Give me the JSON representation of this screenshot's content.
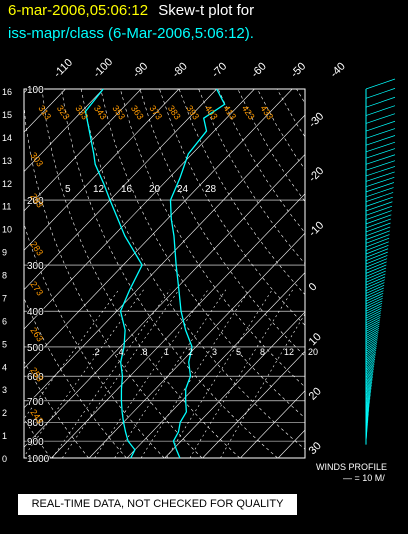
{
  "header": {
    "timestamp": "6-mar-2006,05:06:12",
    "title_suffix": "Skew-t plot for",
    "station_line": "iss-mapr/class (6-Mar-2006,5:06:12)."
  },
  "notice": "REAL-TIME DATA, NOT CHECKED FOR QUALITY",
  "winds": {
    "title": "WINDS PROFILE",
    "scale": "— = 10 M/"
  },
  "colors": {
    "background": "#000000",
    "timestamp": "#ffff00",
    "title": "#ffffff",
    "station": "#00ffff",
    "grid": "#ffffff",
    "mixing_ratio": "#ffffff",
    "dry_adiabat": "#ff9a00",
    "profile": "#00ffff",
    "wind_barbs": "#00ffff",
    "notice_bg": "#ffffff",
    "notice_text": "#000000"
  },
  "chart_data": {
    "type": "line",
    "title": "Skew-t plot for iss-mapr/class (6-Mar-2006,5:06:12).",
    "left_axis_km": [
      "0",
      "1",
      "2",
      "3",
      "4",
      "5",
      "6",
      "7",
      "8",
      "9",
      "10",
      "11",
      "12",
      "13",
      "14",
      "15",
      "16"
    ],
    "pressure_labels": [
      "100",
      "200",
      "300",
      "400",
      "500",
      "600",
      "700",
      "800",
      "900",
      "1000"
    ],
    "top_temperature_labels": [
      "-110",
      "-100",
      "-90",
      "-80",
      "-70",
      "-60",
      "-50",
      "-40"
    ],
    "right_temperature_labels": [
      "-30",
      "-20",
      "-10",
      "0",
      "10",
      "20",
      "30"
    ],
    "mixing_ratio_labels": [
      ".2",
      ".4",
      ".8",
      "1",
      "2",
      "3",
      "5",
      "8",
      "12",
      "20"
    ],
    "dry_adiabat_labels_top": [
      "313",
      "323",
      "333",
      "343",
      "353",
      "363",
      "373",
      "383",
      "393",
      "403",
      "413",
      "423",
      "433"
    ],
    "dry_adiabat_labels_left": [
      "303",
      "293",
      "283",
      "273",
      "263",
      "253",
      "243"
    ],
    "moist_adiabat_labels": [
      "5",
      "12",
      "16",
      "20",
      "24",
      "28"
    ],
    "series": [
      {
        "role": "temperature",
        "points": [
          [
            1000,
            14
          ],
          [
            950,
            11
          ],
          [
            900,
            8
          ],
          [
            850,
            7
          ],
          [
            800,
            5
          ],
          [
            750,
            4
          ],
          [
            700,
            1
          ],
          [
            650,
            -2
          ],
          [
            600,
            -4
          ],
          [
            550,
            -8
          ],
          [
            500,
            -11
          ],
          [
            450,
            -17
          ],
          [
            400,
            -23
          ],
          [
            350,
            -29
          ],
          [
            300,
            -36
          ],
          [
            250,
            -44
          ],
          [
            225,
            -49
          ],
          [
            200,
            -54
          ],
          [
            175,
            -57
          ],
          [
            150,
            -61
          ],
          [
            130,
            -62
          ],
          [
            120,
            -66
          ],
          [
            110,
            -64
          ],
          [
            100,
            -70
          ]
        ]
      },
      {
        "role": "dewpoint",
        "points": [
          [
            1000,
            1
          ],
          [
            950,
            0
          ],
          [
            900,
            -4
          ],
          [
            850,
            -7
          ],
          [
            800,
            -10
          ],
          [
            750,
            -13
          ],
          [
            700,
            -16
          ],
          [
            650,
            -19
          ],
          [
            600,
            -22
          ],
          [
            550,
            -26
          ],
          [
            500,
            -29
          ],
          [
            450,
            -33
          ],
          [
            400,
            -39
          ],
          [
            350,
            -42
          ],
          [
            300,
            -45
          ],
          [
            250,
            -57
          ],
          [
            200,
            -70
          ],
          [
            180,
            -76
          ],
          [
            160,
            -83
          ],
          [
            150,
            -86
          ],
          [
            130,
            -93
          ],
          [
            115,
            -99
          ],
          [
            100,
            -100
          ]
        ]
      }
    ],
    "wind_profile": [
      {
        "p": 100,
        "speed": 30,
        "dir": 250
      },
      {
        "p": 150,
        "speed": 35,
        "dir": 255
      },
      {
        "p": 200,
        "speed": 35,
        "dir": 255
      },
      {
        "p": 250,
        "speed": 30,
        "dir": 255
      },
      {
        "p": 300,
        "speed": 30,
        "dir": 250
      },
      {
        "p": 400,
        "speed": 25,
        "dir": 250
      },
      {
        "p": 500,
        "speed": 20,
        "dir": 250
      },
      {
        "p": 600,
        "speed": 15,
        "dir": 245
      },
      {
        "p": 700,
        "speed": 10,
        "dir": 240
      },
      {
        "p": 800,
        "speed": 5,
        "dir": 230
      },
      {
        "p": 900,
        "speed": 3,
        "dir": 200
      }
    ]
  }
}
